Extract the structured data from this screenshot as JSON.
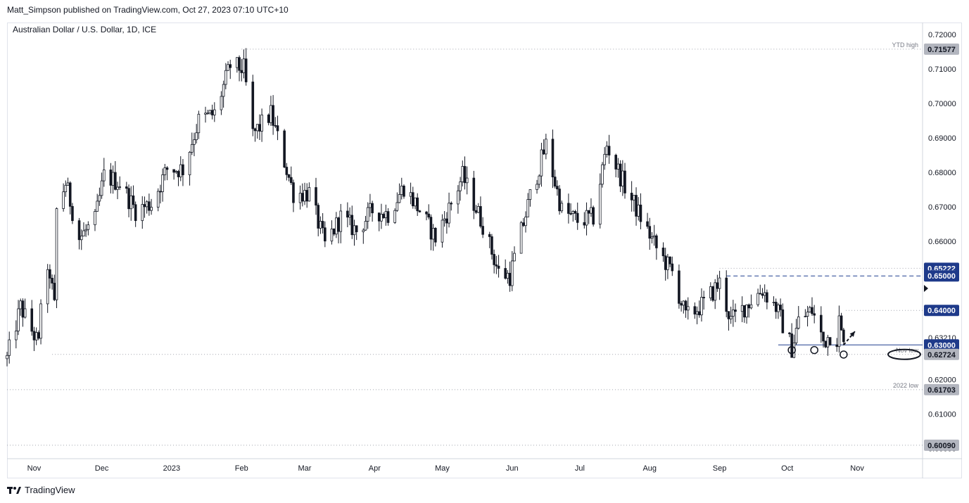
{
  "header": {
    "published": "Matt_Simpson published on TradingView.com, Oct 27, 2023 07:10 UTC+10"
  },
  "footer": {
    "brand": "TradingView"
  },
  "colors": {
    "candle": "#131722",
    "hline_dotted": "#a3a6af",
    "level_blue": "#1f3f8f",
    "label_blue": "#1e3a8a",
    "label_gray": "#787b86",
    "axis_text": "#131722"
  },
  "icons": [
    "tradingview-logo-icon",
    "up-arrow-icon"
  ],
  "chart_data": {
    "type": "candlestick",
    "title": "Australian Dollar / U.S. Dollar, 1D, ICE",
    "ylim": [
      0.597,
      0.7235
    ],
    "y_ticks": [
      "0.72000",
      "0.71000",
      "0.70000",
      "0.69000",
      "0.68000",
      "0.67000",
      "0.66000",
      "0.65000",
      "0.64000",
      "0.63210",
      "0.63000",
      "0.62000",
      "0.61000",
      "0.60000"
    ],
    "x_ticks": [
      "Nov",
      "Dec",
      "2023",
      "Feb",
      "Mar",
      "Apr",
      "May",
      "Jun",
      "Jul",
      "Aug",
      "Sep",
      "Oct",
      "Nov"
    ],
    "x_range": [
      "2022-10-20",
      "2023-11-30"
    ],
    "grid": false,
    "price_labels": [
      {
        "text": "0.71577",
        "value": 0.71577,
        "style": "gray"
      },
      {
        "text": "0.65222",
        "value": 0.65222,
        "style": "blue"
      },
      {
        "text": "0.65000",
        "value": 0.65,
        "style": "blue"
      },
      {
        "text": "0.64000",
        "value": 0.64,
        "style": "blue"
      },
      {
        "text": "0.63000",
        "value": 0.63,
        "style": "blue"
      },
      {
        "text": "0.62724",
        "value": 0.62724,
        "style": "gray"
      },
      {
        "text": "0.61703",
        "value": 0.61703,
        "style": "gray"
      },
      {
        "text": "0.60090",
        "value": 0.6009,
        "style": "gray"
      }
    ],
    "levels": [
      {
        "label": "YTD high",
        "value": 0.71577,
        "from": "2023-02-01",
        "style": "dotted"
      },
      {
        "label": "",
        "value": 0.65222,
        "from": "2023-09-01",
        "style": "dotted"
      },
      {
        "label": "",
        "value": 0.65,
        "from": "2023-09-04",
        "style": "dashed-blue"
      },
      {
        "label": "",
        "value": 0.64,
        "from": "2023-10-27",
        "style": "dotted"
      },
      {
        "label": "",
        "value": 0.63,
        "from": "2023-09-27",
        "style": "solid-blue"
      },
      {
        "label": "Nov low",
        "value": 0.62724,
        "from": "2022-11-09",
        "style": "dotted"
      },
      {
        "label": "2022 low",
        "value": 0.61703,
        "from": "2022-10-20",
        "style": "dotted"
      },
      {
        "label": "",
        "value": 0.6009,
        "from": "2022-10-20",
        "style": "dotted"
      }
    ],
    "anchors": [
      {
        "date": "2022-10-20",
        "value": 0.626
      },
      {
        "date": "2022-10-26",
        "value": 0.641
      },
      {
        "date": "2022-11-03",
        "value": 0.63
      },
      {
        "date": "2022-11-04",
        "value": 0.643
      },
      {
        "date": "2022-11-08",
        "value": 0.651
      },
      {
        "date": "2022-11-10",
        "value": 0.641
      },
      {
        "date": "2022-11-11",
        "value": 0.669
      },
      {
        "date": "2022-11-15",
        "value": 0.677
      },
      {
        "date": "2022-11-21",
        "value": 0.661
      },
      {
        "date": "2022-11-28",
        "value": 0.666
      },
      {
        "date": "2022-12-02",
        "value": 0.679
      },
      {
        "date": "2022-12-09",
        "value": 0.677
      },
      {
        "date": "2022-12-16",
        "value": 0.669
      },
      {
        "date": "2022-12-23",
        "value": 0.671
      },
      {
        "date": "2022-12-30",
        "value": 0.681
      },
      {
        "date": "2023-01-06",
        "value": 0.681
      },
      {
        "date": "2023-01-13",
        "value": 0.695
      },
      {
        "date": "2023-01-20",
        "value": 0.697
      },
      {
        "date": "2023-01-27",
        "value": 0.711
      },
      {
        "date": "2023-02-02",
        "value": 0.71
      },
      {
        "date": "2023-02-06",
        "value": 0.691
      },
      {
        "date": "2023-02-14",
        "value": 0.697
      },
      {
        "date": "2023-02-24",
        "value": 0.674
      },
      {
        "date": "2023-03-03",
        "value": 0.674
      },
      {
        "date": "2023-03-10",
        "value": 0.659
      },
      {
        "date": "2023-03-17",
        "value": 0.667
      },
      {
        "date": "2023-03-24",
        "value": 0.663
      },
      {
        "date": "2023-03-31",
        "value": 0.669
      },
      {
        "date": "2023-04-07",
        "value": 0.668
      },
      {
        "date": "2023-04-14",
        "value": 0.676
      },
      {
        "date": "2023-04-21",
        "value": 0.669
      },
      {
        "date": "2023-04-28",
        "value": 0.661
      },
      {
        "date": "2023-05-05",
        "value": 0.671
      },
      {
        "date": "2023-05-10",
        "value": 0.679
      },
      {
        "date": "2023-05-19",
        "value": 0.665
      },
      {
        "date": "2023-05-26",
        "value": 0.651
      },
      {
        "date": "2023-05-31",
        "value": 0.65
      },
      {
        "date": "2023-06-09",
        "value": 0.673
      },
      {
        "date": "2023-06-16",
        "value": 0.688
      },
      {
        "date": "2023-06-23",
        "value": 0.669
      },
      {
        "date": "2023-06-30",
        "value": 0.666
      },
      {
        "date": "2023-07-07",
        "value": 0.667
      },
      {
        "date": "2023-07-13",
        "value": 0.688
      },
      {
        "date": "2023-07-21",
        "value": 0.676
      },
      {
        "date": "2023-07-28",
        "value": 0.667
      },
      {
        "date": "2023-08-04",
        "value": 0.658
      },
      {
        "date": "2023-08-11",
        "value": 0.651
      },
      {
        "date": "2023-08-17",
        "value": 0.638
      },
      {
        "date": "2023-08-25",
        "value": 0.642
      },
      {
        "date": "2023-09-01",
        "value": 0.648
      },
      {
        "date": "2023-09-06",
        "value": 0.637
      },
      {
        "date": "2023-09-15",
        "value": 0.643
      },
      {
        "date": "2023-09-20",
        "value": 0.646
      },
      {
        "date": "2023-09-26",
        "value": 0.641
      },
      {
        "date": "2023-10-03",
        "value": 0.629
      },
      {
        "date": "2023-10-06",
        "value": 0.637
      },
      {
        "date": "2023-10-12",
        "value": 0.64
      },
      {
        "date": "2023-10-17",
        "value": 0.631
      },
      {
        "date": "2023-10-20",
        "value": 0.633
      },
      {
        "date": "2023-10-23",
        "value": 0.632
      },
      {
        "date": "2023-10-24",
        "value": 0.637
      },
      {
        "date": "2023-10-26",
        "value": 0.6295
      }
    ],
    "markers": [
      {
        "date": "2023-10-03",
        "value": 0.6285
      },
      {
        "date": "2023-10-13",
        "value": 0.6285
      },
      {
        "date": "2023-10-26",
        "value": 0.6272
      }
    ],
    "arrow": {
      "from_date": "2023-10-26",
      "from_value": 0.63,
      "to_date": "2023-10-31",
      "to_value": 0.6339
    },
    "nov_low_label": "Nov low",
    "ytd_high_label": "YTD high",
    "low_2022_label": "2022 low"
  }
}
